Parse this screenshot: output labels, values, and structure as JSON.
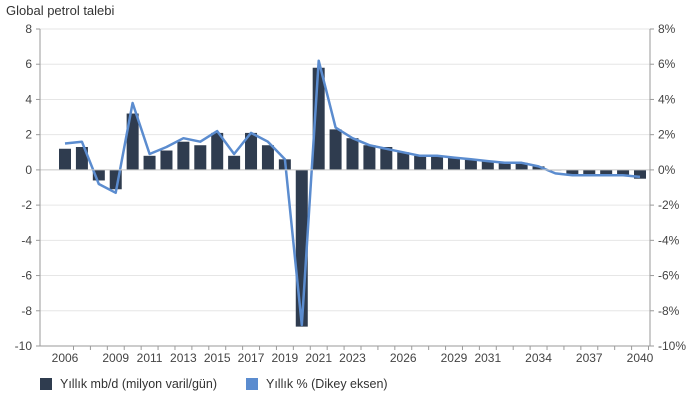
{
  "chart_data": {
    "type": "bar",
    "title": "Global petrol talebi",
    "years": [
      2006,
      2007,
      2008,
      2009,
      2010,
      2011,
      2012,
      2013,
      2014,
      2015,
      2016,
      2017,
      2018,
      2019,
      2020,
      2021,
      2022,
      2023,
      2024,
      2025,
      2026,
      2027,
      2028,
      2029,
      2030,
      2031,
      2032,
      2033,
      2034,
      2035,
      2036,
      2037,
      2038,
      2039,
      2040
    ],
    "x_tick_labels": [
      "2006",
      "2009",
      "2011",
      "2013",
      "2015",
      "2017",
      "2019",
      "2021",
      "2023",
      "2026",
      "2029",
      "2031",
      "2034",
      "2037",
      "2040"
    ],
    "y_left": {
      "ticks": [
        8,
        6,
        4,
        2,
        0,
        -2,
        -4,
        -6,
        -8,
        -10
      ],
      "range": [
        -10,
        8
      ]
    },
    "y_right": {
      "ticks": [
        "8%",
        "6%",
        "4%",
        "2%",
        "0%",
        "-2%",
        "-4%",
        "-6%",
        "-8%",
        "-10%"
      ],
      "range": [
        -10,
        8
      ]
    },
    "series": [
      {
        "name": "Yıllık mb/d (milyon varil/gün)",
        "type": "bar",
        "color": "#2f3c4f",
        "values": [
          1.2,
          1.3,
          -0.6,
          -1.1,
          3.2,
          0.8,
          1.1,
          1.6,
          1.4,
          2.1,
          0.8,
          2.1,
          1.4,
          0.6,
          -8.9,
          5.8,
          2.3,
          1.8,
          1.4,
          1.3,
          1.0,
          0.8,
          0.8,
          0.7,
          0.6,
          0.5,
          0.4,
          0.4,
          0.2,
          0.0,
          -0.3,
          -0.3,
          -0.3,
          -0.3,
          -0.5
        ]
      },
      {
        "name": "Yıllık % (Dikey eksen)",
        "type": "line",
        "color": "#5b8ccf",
        "values": [
          1.5,
          1.6,
          -0.8,
          -1.3,
          3.8,
          0.9,
          1.3,
          1.8,
          1.6,
          2.2,
          0.9,
          2.1,
          1.6,
          0.6,
          -8.8,
          6.2,
          2.4,
          1.8,
          1.4,
          1.2,
          1.0,
          0.8,
          0.8,
          0.7,
          0.6,
          0.5,
          0.4,
          0.4,
          0.2,
          -0.2,
          -0.3,
          -0.3,
          -0.3,
          -0.3,
          -0.4
        ]
      }
    ]
  }
}
